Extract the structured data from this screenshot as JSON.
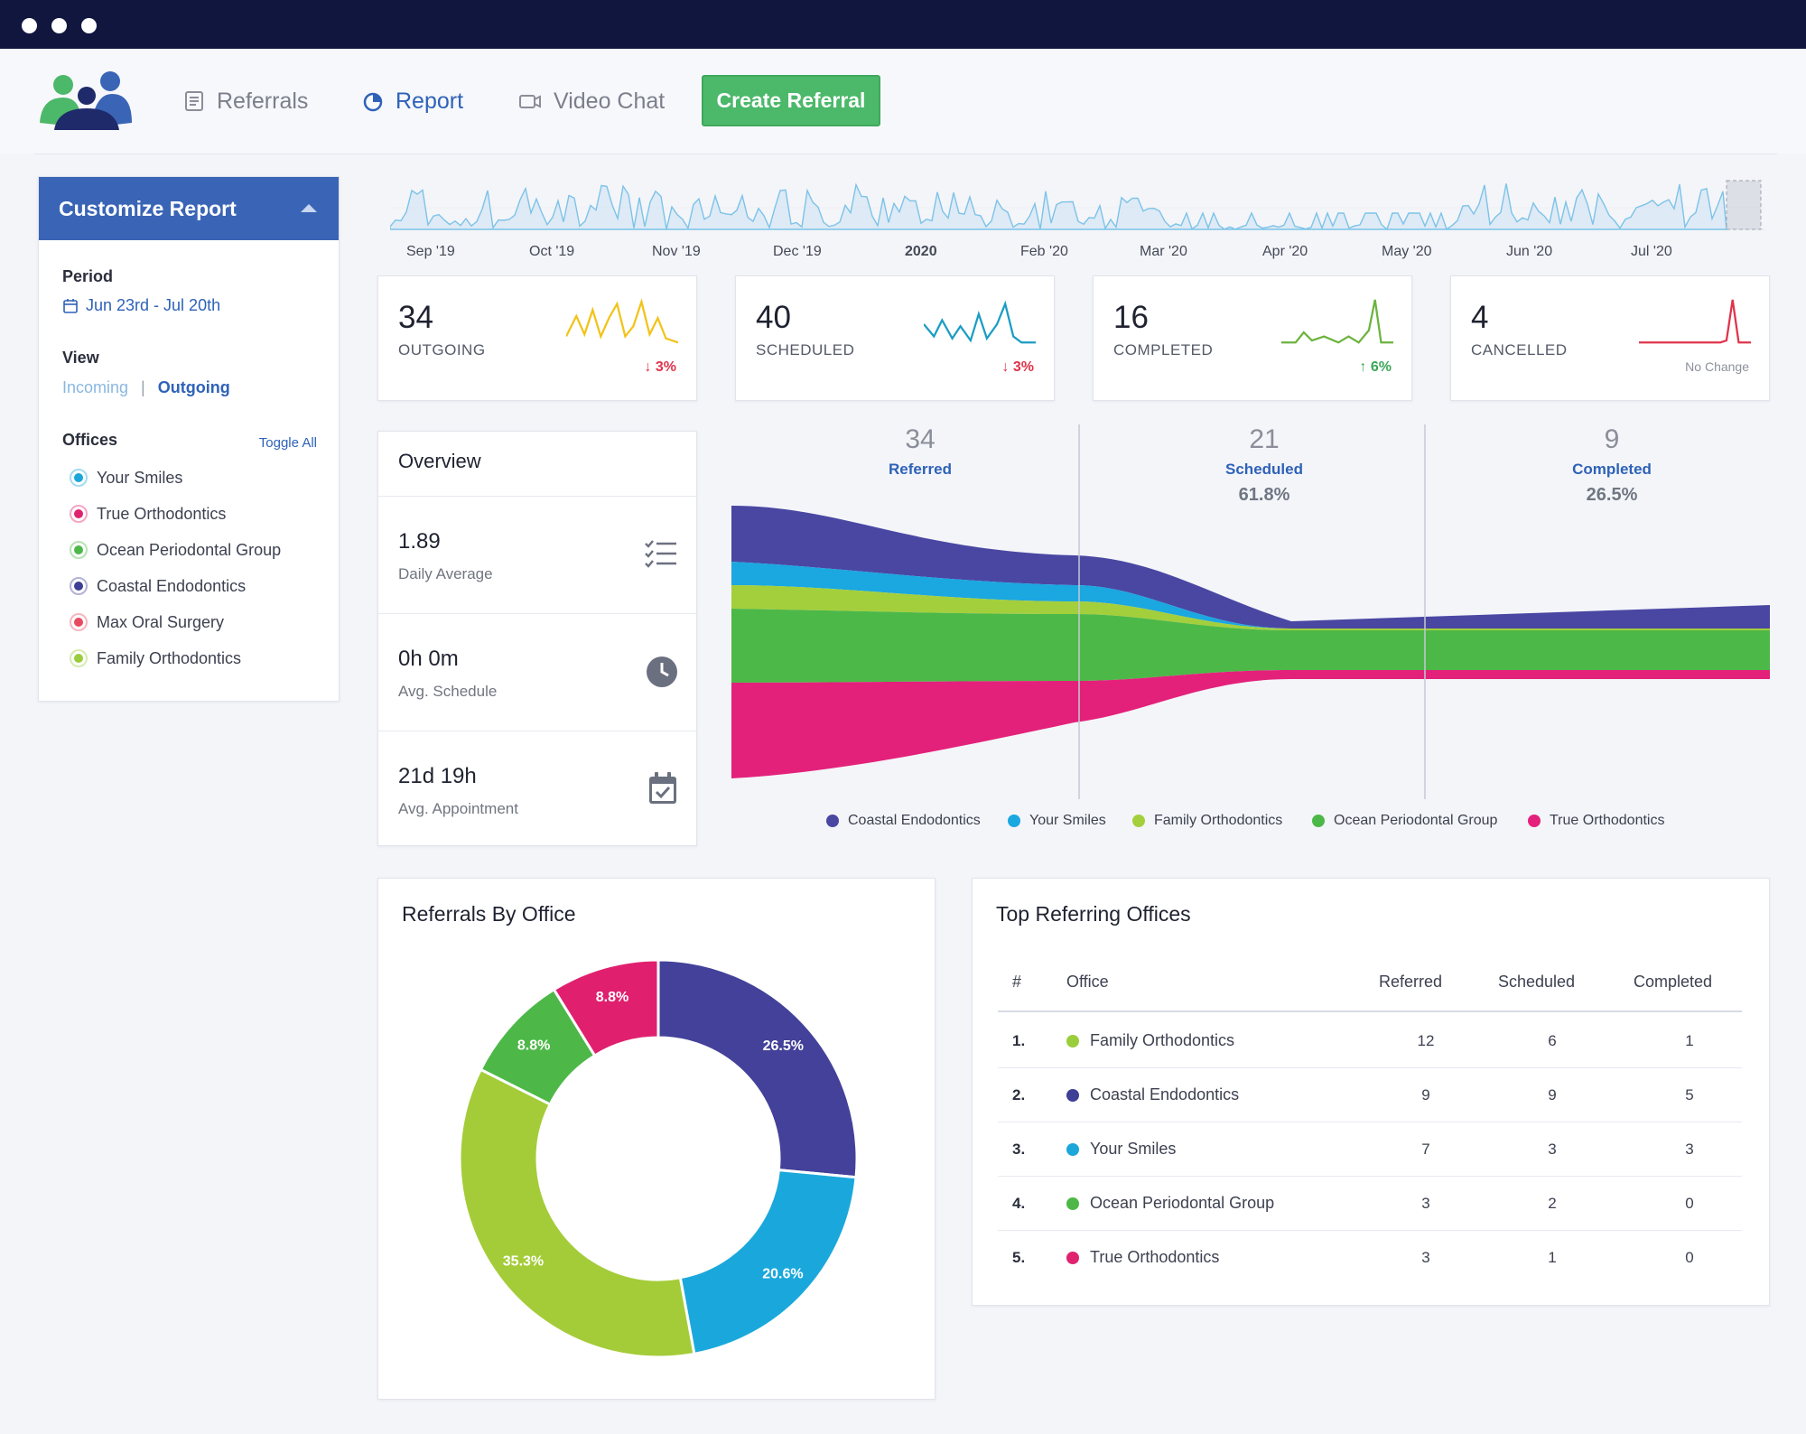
{
  "nav": {
    "items": [
      {
        "label": "Referrals",
        "active": false,
        "icon": "list-icon"
      },
      {
        "label": "Report",
        "active": true,
        "icon": "pie-icon"
      },
      {
        "label": "Video Chat",
        "active": false,
        "icon": "video-icon"
      }
    ],
    "create_label": "Create Referral"
  },
  "sidebar": {
    "title": "Customize Report",
    "period_label": "Period",
    "period_value": "Jun 23rd - Jul 20th",
    "view_label": "View",
    "view_incoming": "Incoming",
    "view_sep": "|",
    "view_outgoing": "Outgoing",
    "offices_label": "Offices",
    "toggle_all": "Toggle All",
    "offices": [
      {
        "name": "Your Smiles",
        "color": "#1ba7d9"
      },
      {
        "name": "True Orthodontics",
        "color": "#e0226f"
      },
      {
        "name": "Ocean Periodontal Group",
        "color": "#4db848"
      },
      {
        "name": "Coastal Endodontics",
        "color": "#3f3f95"
      },
      {
        "name": "Max Oral Surgery",
        "color": "#e84a5f"
      },
      {
        "name": "Family Orthodontics",
        "color": "#9acd3c"
      }
    ]
  },
  "timeline": {
    "labels": [
      "Sep '19",
      "Oct '19",
      "Nov '19",
      "Dec '19",
      "2020",
      "Feb '20",
      "Mar '20",
      "Apr '20",
      "May '20",
      "Jun '20",
      "Jul '20"
    ]
  },
  "stats": [
    {
      "value": "34",
      "label": "OUTGOING",
      "change": "3%",
      "direction": "down",
      "color": "#f2c318"
    },
    {
      "value": "40",
      "label": "SCHEDULED",
      "change": "3%",
      "direction": "down",
      "color": "#1a9dc4"
    },
    {
      "value": "16",
      "label": "COMPLETED",
      "change": "6%",
      "direction": "up",
      "color": "#6cb33f"
    },
    {
      "value": "4",
      "label": "CANCELLED",
      "change": "No Change",
      "direction": "none",
      "color": "#e0334a"
    }
  ],
  "overview": {
    "title": "Overview",
    "rows": [
      {
        "value": "1.89",
        "label": "Daily Average",
        "icon": "checklist-icon"
      },
      {
        "value": "0h 0m",
        "label": "Avg. Schedule",
        "icon": "clock-icon"
      },
      {
        "value": "21d 19h",
        "label": "Avg. Appointment",
        "icon": "calendar-check-icon"
      }
    ]
  },
  "funnel": {
    "stages": [
      {
        "count": "34",
        "name": "Referred",
        "pct": ""
      },
      {
        "count": "21",
        "name": "Scheduled",
        "pct": "61.8%"
      },
      {
        "count": "9",
        "name": "Completed",
        "pct": "26.5%"
      }
    ],
    "legend": [
      {
        "name": "Coastal Endodontics",
        "color": "#4a47a3"
      },
      {
        "name": "Your Smiles",
        "color": "#1ba7e0"
      },
      {
        "name": "Family Orthodontics",
        "color": "#a4cf3c"
      },
      {
        "name": "Ocean Periodontal Group",
        "color": "#4cb848"
      },
      {
        "name": "True Orthodontics",
        "color": "#e3217a"
      }
    ]
  },
  "chart_data": {
    "type": "pie",
    "title": "Referrals By Office",
    "slices": [
      {
        "label": "26.5%",
        "value": 26.5,
        "color": "#434199"
      },
      {
        "label": "20.6%",
        "value": 20.6,
        "color": "#1aa8dc"
      },
      {
        "label": "35.3%",
        "value": 35.3,
        "color": "#a4cc39"
      },
      {
        "label": "8.8%",
        "value": 8.8,
        "color": "#4db848"
      },
      {
        "label": "8.8%",
        "value": 8.8,
        "color": "#e0206e"
      }
    ]
  },
  "top_offices": {
    "title": "Top Referring Offices",
    "headers": {
      "idx": "#",
      "office": "Office",
      "referred": "Referred",
      "scheduled": "Scheduled",
      "completed": "Completed"
    },
    "rows": [
      {
        "idx": "1.",
        "office": "Family Orthodontics",
        "color": "#9acd3c",
        "referred": "12",
        "scheduled": "6",
        "completed": "1"
      },
      {
        "idx": "2.",
        "office": "Coastal Endodontics",
        "color": "#3f3f95",
        "referred": "9",
        "scheduled": "9",
        "completed": "5"
      },
      {
        "idx": "3.",
        "office": "Your Smiles",
        "color": "#1ba7d9",
        "referred": "7",
        "scheduled": "3",
        "completed": "3"
      },
      {
        "idx": "4.",
        "office": "Ocean Periodontal Group",
        "color": "#4db848",
        "referred": "3",
        "scheduled": "2",
        "completed": "0"
      },
      {
        "idx": "5.",
        "office": "True Orthodontics",
        "color": "#e0226f",
        "referred": "3",
        "scheduled": "1",
        "completed": "0"
      }
    ]
  }
}
